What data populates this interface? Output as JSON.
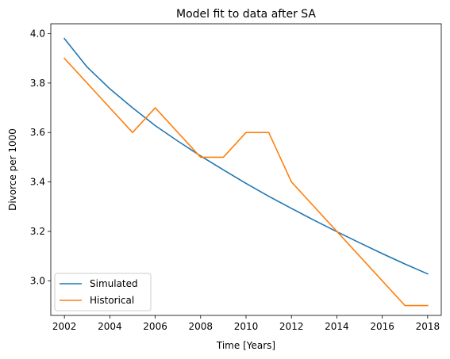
{
  "chart_data": {
    "type": "line",
    "title": "Model fit to data after SA",
    "xlabel": "Time [Years]",
    "ylabel": "Divorce per 1000",
    "xlim": [
      2001.4,
      2018.6
    ],
    "ylim": [
      2.86,
      4.04
    ],
    "x_ticks": [
      2002,
      2004,
      2006,
      2008,
      2010,
      2012,
      2014,
      2016,
      2018
    ],
    "y_ticks": [
      3.0,
      3.2,
      3.4,
      3.6,
      3.8,
      4.0
    ],
    "x_tick_labels": [
      "2002",
      "2004",
      "2006",
      "2008",
      "2010",
      "2012",
      "2014",
      "2016",
      "2018"
    ],
    "y_tick_labels": [
      "3.0",
      "3.2",
      "3.4",
      "3.6",
      "3.8",
      "4.0"
    ],
    "grid": false,
    "legend_position": "lower-left",
    "series": [
      {
        "name": "Simulated",
        "color": "#1f77b4",
        "x": [
          2002,
          2003,
          2004,
          2005,
          2006,
          2007,
          2008,
          2009,
          2010,
          2011,
          2012,
          2013,
          2014,
          2015,
          2016,
          2017,
          2018
        ],
        "y": [
          3.98,
          3.865,
          3.777,
          3.7,
          3.628,
          3.565,
          3.505,
          3.449,
          3.394,
          3.342,
          3.293,
          3.245,
          3.199,
          3.154,
          3.11,
          3.068,
          3.028
        ]
      },
      {
        "name": "Historical",
        "color": "#ff7f0e",
        "x": [
          2002,
          2005,
          2006,
          2008,
          2009,
          2010,
          2011,
          2012,
          2014,
          2017,
          2018
        ],
        "y": [
          3.9,
          3.6,
          3.7,
          3.5,
          3.5,
          3.6,
          3.6,
          3.4,
          3.2,
          2.9,
          2.9
        ]
      }
    ]
  }
}
